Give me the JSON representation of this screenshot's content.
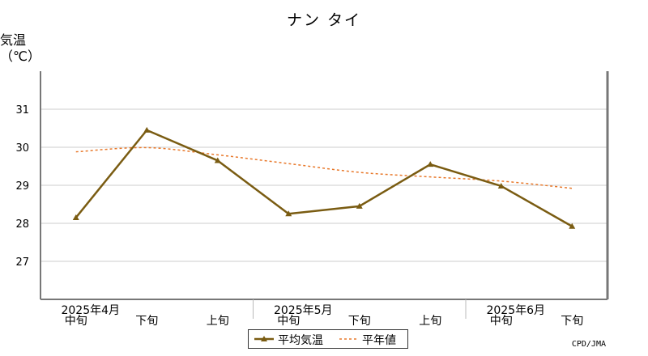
{
  "chart_data": {
    "type": "line",
    "title": "ナン タイ",
    "ylabel": "気温\n（℃）",
    "ylim": [
      26,
      32
    ],
    "yticks": [
      27,
      28,
      29,
      30,
      31
    ],
    "categories": [
      "中旬",
      "下旬",
      "上旬",
      "中旬",
      "下旬",
      "上旬",
      "中旬",
      "下旬"
    ],
    "month_labels": [
      {
        "label": "2025年4月",
        "at_category": 0
      },
      {
        "label": "2025年5月",
        "at_category": 3
      },
      {
        "label": "2025年6月",
        "at_category": 6
      }
    ],
    "series": [
      {
        "name": "平均気温",
        "style": "solid-triangle",
        "color": "#7a5c12",
        "values": [
          28.15,
          30.45,
          29.65,
          28.25,
          28.45,
          29.55,
          28.98,
          27.92
        ]
      },
      {
        "name": "平年値",
        "style": "dashed",
        "color": "#e8782a",
        "values": [
          29.88,
          29.99,
          29.8,
          29.57,
          29.34,
          29.22,
          29.11,
          28.92
        ]
      }
    ],
    "grid": true,
    "legend_position": "bottom-center"
  },
  "credit": "CPD/JMA",
  "colors": {
    "axis": "#777777",
    "grid": "#cccccc"
  }
}
